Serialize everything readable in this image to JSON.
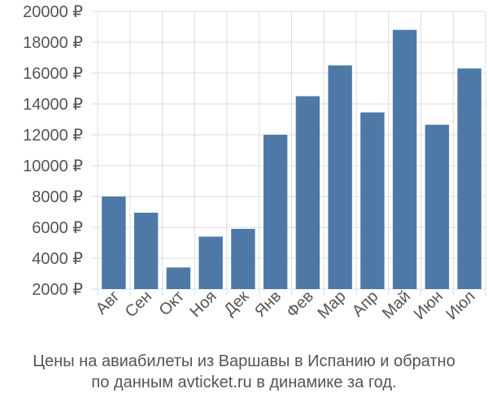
{
  "chart_data": {
    "type": "bar",
    "categories": [
      "Авг",
      "Сен",
      "Окт",
      "Ноя",
      "Дек",
      "Янв",
      "Фев",
      "Мар",
      "Апр",
      "Май",
      "Июн",
      "Июл"
    ],
    "values": [
      8000,
      6950,
      3400,
      5400,
      5900,
      12000,
      14500,
      16500,
      13450,
      18800,
      12650,
      16300
    ],
    "ylim": [
      2000,
      20000
    ],
    "yticks": [
      2000,
      4000,
      6000,
      8000,
      10000,
      12000,
      14000,
      16000,
      18000,
      20000
    ],
    "currency_suffix": " ₽",
    "grid": true,
    "bar_color": "#4e79a7",
    "caption_line1": "Цены на авиабилеты из Варшавы в Испанию и обратно",
    "caption_line2": "по данным avticket.ru в динамике за год."
  }
}
